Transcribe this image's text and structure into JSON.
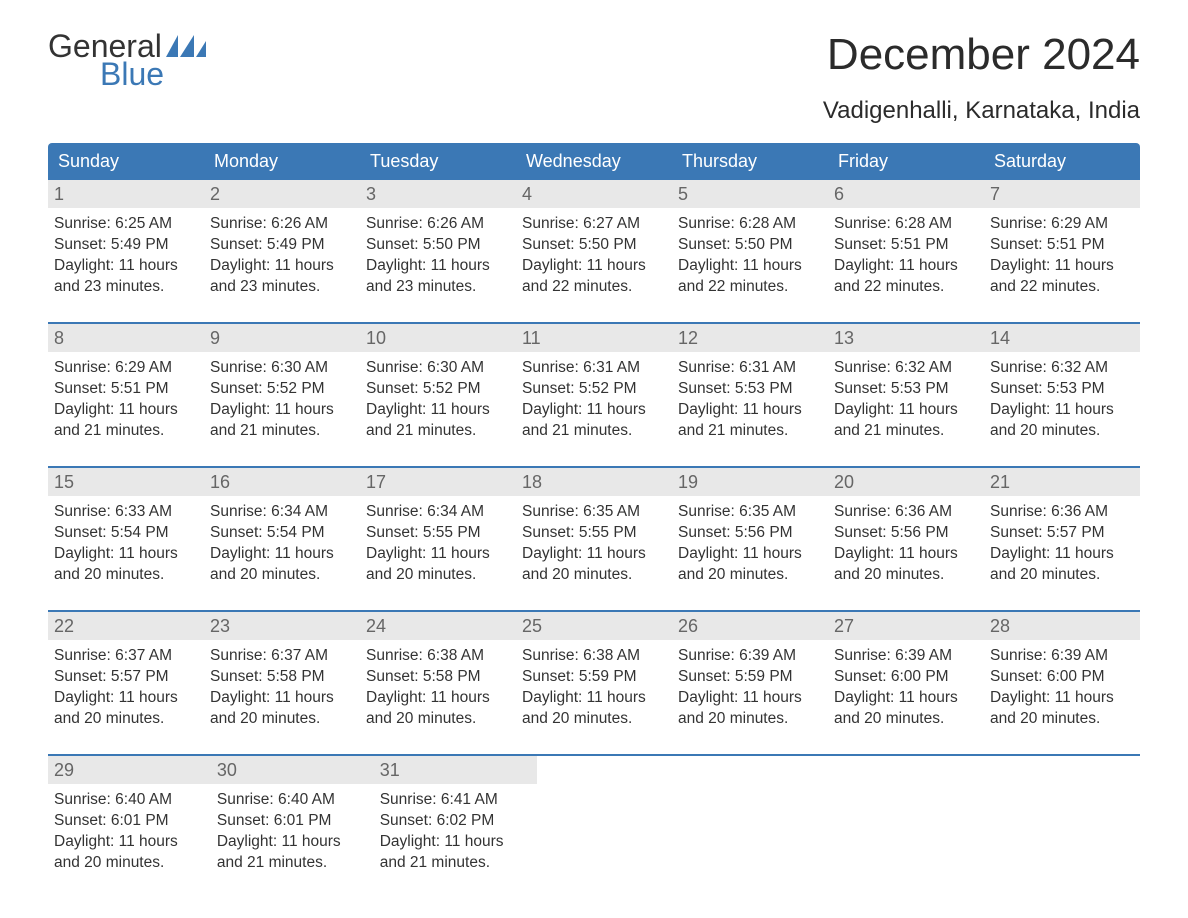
{
  "logo": {
    "word1": "General",
    "word2": "Blue",
    "flag_color": "#3b78b5"
  },
  "title": "December 2024",
  "subtitle": "Vadigenhalli, Karnataka, India",
  "colors": {
    "header_bg": "#3b78b5",
    "header_text": "#ffffff",
    "daynum_bg": "#e8e8e8",
    "daynum_text": "#666666",
    "body_text": "#333333",
    "week_border": "#3b78b5"
  },
  "day_headers": [
    "Sunday",
    "Monday",
    "Tuesday",
    "Wednesday",
    "Thursday",
    "Friday",
    "Saturday"
  ],
  "weeks": [
    [
      {
        "n": "1",
        "sunrise": "Sunrise: 6:25 AM",
        "sunset": "Sunset: 5:49 PM",
        "d1": "Daylight: 11 hours",
        "d2": "and 23 minutes."
      },
      {
        "n": "2",
        "sunrise": "Sunrise: 6:26 AM",
        "sunset": "Sunset: 5:49 PM",
        "d1": "Daylight: 11 hours",
        "d2": "and 23 minutes."
      },
      {
        "n": "3",
        "sunrise": "Sunrise: 6:26 AM",
        "sunset": "Sunset: 5:50 PM",
        "d1": "Daylight: 11 hours",
        "d2": "and 23 minutes."
      },
      {
        "n": "4",
        "sunrise": "Sunrise: 6:27 AM",
        "sunset": "Sunset: 5:50 PM",
        "d1": "Daylight: 11 hours",
        "d2": "and 22 minutes."
      },
      {
        "n": "5",
        "sunrise": "Sunrise: 6:28 AM",
        "sunset": "Sunset: 5:50 PM",
        "d1": "Daylight: 11 hours",
        "d2": "and 22 minutes."
      },
      {
        "n": "6",
        "sunrise": "Sunrise: 6:28 AM",
        "sunset": "Sunset: 5:51 PM",
        "d1": "Daylight: 11 hours",
        "d2": "and 22 minutes."
      },
      {
        "n": "7",
        "sunrise": "Sunrise: 6:29 AM",
        "sunset": "Sunset: 5:51 PM",
        "d1": "Daylight: 11 hours",
        "d2": "and 22 minutes."
      }
    ],
    [
      {
        "n": "8",
        "sunrise": "Sunrise: 6:29 AM",
        "sunset": "Sunset: 5:51 PM",
        "d1": "Daylight: 11 hours",
        "d2": "and 21 minutes."
      },
      {
        "n": "9",
        "sunrise": "Sunrise: 6:30 AM",
        "sunset": "Sunset: 5:52 PM",
        "d1": "Daylight: 11 hours",
        "d2": "and 21 minutes."
      },
      {
        "n": "10",
        "sunrise": "Sunrise: 6:30 AM",
        "sunset": "Sunset: 5:52 PM",
        "d1": "Daylight: 11 hours",
        "d2": "and 21 minutes."
      },
      {
        "n": "11",
        "sunrise": "Sunrise: 6:31 AM",
        "sunset": "Sunset: 5:52 PM",
        "d1": "Daylight: 11 hours",
        "d2": "and 21 minutes."
      },
      {
        "n": "12",
        "sunrise": "Sunrise: 6:31 AM",
        "sunset": "Sunset: 5:53 PM",
        "d1": "Daylight: 11 hours",
        "d2": "and 21 minutes."
      },
      {
        "n": "13",
        "sunrise": "Sunrise: 6:32 AM",
        "sunset": "Sunset: 5:53 PM",
        "d1": "Daylight: 11 hours",
        "d2": "and 21 minutes."
      },
      {
        "n": "14",
        "sunrise": "Sunrise: 6:32 AM",
        "sunset": "Sunset: 5:53 PM",
        "d1": "Daylight: 11 hours",
        "d2": "and 20 minutes."
      }
    ],
    [
      {
        "n": "15",
        "sunrise": "Sunrise: 6:33 AM",
        "sunset": "Sunset: 5:54 PM",
        "d1": "Daylight: 11 hours",
        "d2": "and 20 minutes."
      },
      {
        "n": "16",
        "sunrise": "Sunrise: 6:34 AM",
        "sunset": "Sunset: 5:54 PM",
        "d1": "Daylight: 11 hours",
        "d2": "and 20 minutes."
      },
      {
        "n": "17",
        "sunrise": "Sunrise: 6:34 AM",
        "sunset": "Sunset: 5:55 PM",
        "d1": "Daylight: 11 hours",
        "d2": "and 20 minutes."
      },
      {
        "n": "18",
        "sunrise": "Sunrise: 6:35 AM",
        "sunset": "Sunset: 5:55 PM",
        "d1": "Daylight: 11 hours",
        "d2": "and 20 minutes."
      },
      {
        "n": "19",
        "sunrise": "Sunrise: 6:35 AM",
        "sunset": "Sunset: 5:56 PM",
        "d1": "Daylight: 11 hours",
        "d2": "and 20 minutes."
      },
      {
        "n": "20",
        "sunrise": "Sunrise: 6:36 AM",
        "sunset": "Sunset: 5:56 PM",
        "d1": "Daylight: 11 hours",
        "d2": "and 20 minutes."
      },
      {
        "n": "21",
        "sunrise": "Sunrise: 6:36 AM",
        "sunset": "Sunset: 5:57 PM",
        "d1": "Daylight: 11 hours",
        "d2": "and 20 minutes."
      }
    ],
    [
      {
        "n": "22",
        "sunrise": "Sunrise: 6:37 AM",
        "sunset": "Sunset: 5:57 PM",
        "d1": "Daylight: 11 hours",
        "d2": "and 20 minutes."
      },
      {
        "n": "23",
        "sunrise": "Sunrise: 6:37 AM",
        "sunset": "Sunset: 5:58 PM",
        "d1": "Daylight: 11 hours",
        "d2": "and 20 minutes."
      },
      {
        "n": "24",
        "sunrise": "Sunrise: 6:38 AM",
        "sunset": "Sunset: 5:58 PM",
        "d1": "Daylight: 11 hours",
        "d2": "and 20 minutes."
      },
      {
        "n": "25",
        "sunrise": "Sunrise: 6:38 AM",
        "sunset": "Sunset: 5:59 PM",
        "d1": "Daylight: 11 hours",
        "d2": "and 20 minutes."
      },
      {
        "n": "26",
        "sunrise": "Sunrise: 6:39 AM",
        "sunset": "Sunset: 5:59 PM",
        "d1": "Daylight: 11 hours",
        "d2": "and 20 minutes."
      },
      {
        "n": "27",
        "sunrise": "Sunrise: 6:39 AM",
        "sunset": "Sunset: 6:00 PM",
        "d1": "Daylight: 11 hours",
        "d2": "and 20 minutes."
      },
      {
        "n": "28",
        "sunrise": "Sunrise: 6:39 AM",
        "sunset": "Sunset: 6:00 PM",
        "d1": "Daylight: 11 hours",
        "d2": "and 20 minutes."
      }
    ],
    [
      {
        "n": "29",
        "sunrise": "Sunrise: 6:40 AM",
        "sunset": "Sunset: 6:01 PM",
        "d1": "Daylight: 11 hours",
        "d2": "and 20 minutes."
      },
      {
        "n": "30",
        "sunrise": "Sunrise: 6:40 AM",
        "sunset": "Sunset: 6:01 PM",
        "d1": "Daylight: 11 hours",
        "d2": "and 21 minutes."
      },
      {
        "n": "31",
        "sunrise": "Sunrise: 6:41 AM",
        "sunset": "Sunset: 6:02 PM",
        "d1": "Daylight: 11 hours",
        "d2": "and 21 minutes."
      },
      null,
      null,
      null,
      null
    ]
  ]
}
